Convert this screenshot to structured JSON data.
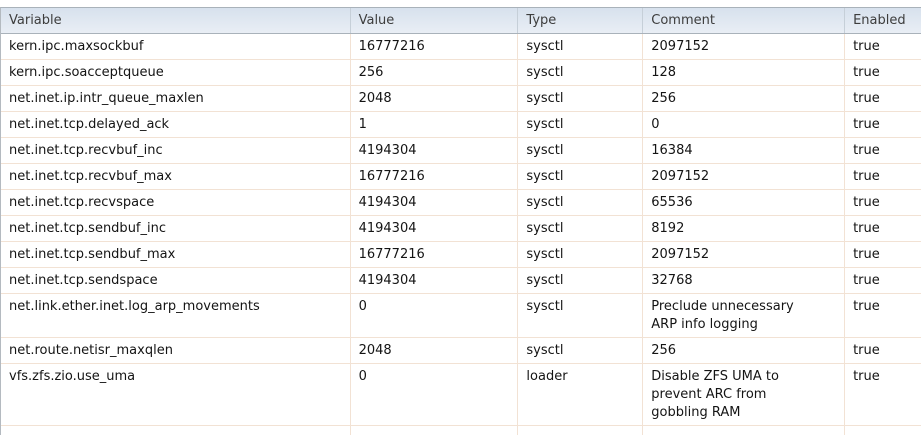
{
  "colors": {
    "grid_border": "#a9b2ba",
    "cell_separator": "#f2e2d4",
    "header_gradient_top": "#d7e1ed",
    "header_gradient_bottom": "#e9eef5",
    "header_text": "#3d3d3d",
    "cell_text": "#141414",
    "row_background": "#ffffff"
  },
  "table": {
    "columns": [
      {
        "key": "variable",
        "label": "Variable"
      },
      {
        "key": "value",
        "label": "Value"
      },
      {
        "key": "type",
        "label": "Type"
      },
      {
        "key": "comment",
        "label": "Comment"
      },
      {
        "key": "enabled",
        "label": "Enabled"
      }
    ],
    "rows": [
      {
        "variable": "kern.ipc.maxsockbuf",
        "value": "16777216",
        "type": "sysctl",
        "comment": "2097152",
        "enabled": "true"
      },
      {
        "variable": "kern.ipc.soacceptqueue",
        "value": "256",
        "type": "sysctl",
        "comment": "128",
        "enabled": "true"
      },
      {
        "variable": "net.inet.ip.intr_queue_maxlen",
        "value": "2048",
        "type": "sysctl",
        "comment": "256",
        "enabled": "true"
      },
      {
        "variable": "net.inet.tcp.delayed_ack",
        "value": "1",
        "type": "sysctl",
        "comment": "0",
        "enabled": "true"
      },
      {
        "variable": "net.inet.tcp.recvbuf_inc",
        "value": "4194304",
        "type": "sysctl",
        "comment": "16384",
        "enabled": "true"
      },
      {
        "variable": "net.inet.tcp.recvbuf_max",
        "value": "16777216",
        "type": "sysctl",
        "comment": "2097152",
        "enabled": "true"
      },
      {
        "variable": "net.inet.tcp.recvspace",
        "value": "4194304",
        "type": "sysctl",
        "comment": "65536",
        "enabled": "true"
      },
      {
        "variable": "net.inet.tcp.sendbuf_inc",
        "value": "4194304",
        "type": "sysctl",
        "comment": "8192",
        "enabled": "true"
      },
      {
        "variable": "net.inet.tcp.sendbuf_max",
        "value": "16777216",
        "type": "sysctl",
        "comment": "2097152",
        "enabled": "true"
      },
      {
        "variable": "net.inet.tcp.sendspace",
        "value": "4194304",
        "type": "sysctl",
        "comment": "32768",
        "enabled": "true"
      },
      {
        "variable": "net.link.ether.inet.log_arp_movements",
        "value": "0",
        "type": "sysctl",
        "comment": "Preclude unnecessary ARP info logging",
        "enabled": "true"
      },
      {
        "variable": "net.route.netisr_maxqlen",
        "value": "2048",
        "type": "sysctl",
        "comment": "256",
        "enabled": "true"
      },
      {
        "variable": "vfs.zfs.zio.use_uma",
        "value": "0",
        "type": "loader",
        "comment": "Disable ZFS UMA to prevent ARC from gobbling RAM",
        "enabled": "true"
      }
    ]
  }
}
